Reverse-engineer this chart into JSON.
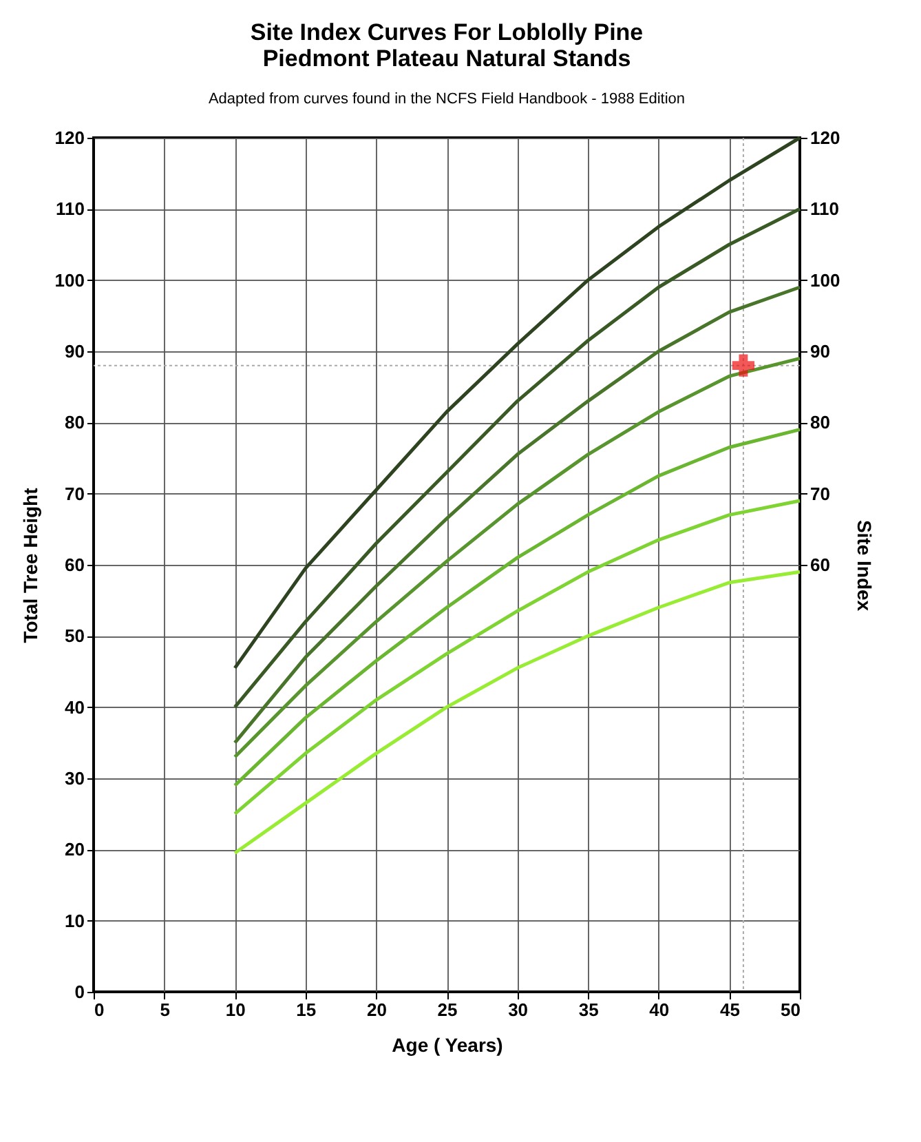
{
  "chart_data": {
    "type": "line",
    "title": "Site Index Curves For Loblolly Pine\nPiedmont Plateau Natural Stands",
    "subtitle": "Adapted from curves found in the NCFS Field Handbook - 1988 Edition",
    "xlabel": "Age ( Years)",
    "ylabel": "Total Tree Height",
    "y2label": "Site Index",
    "x": [
      10,
      15,
      20,
      25,
      30,
      35,
      40,
      45,
      50
    ],
    "series": [
      {
        "color": "#2e4420",
        "values": [
          45.5,
          59.5,
          70.5,
          81.5,
          91,
          100,
          107.5,
          114,
          120
        ]
      },
      {
        "color": "#3a5a25",
        "values": [
          40,
          52,
          63,
          73,
          83,
          91.5,
          99,
          105,
          110
        ]
      },
      {
        "color": "#48752a",
        "values": [
          35,
          47,
          57,
          66.5,
          75.5,
          83,
          90,
          95.5,
          99
        ]
      },
      {
        "color": "#58952e",
        "values": [
          33,
          43,
          52,
          60.5,
          68.5,
          75.5,
          81.5,
          86.5,
          89
        ]
      },
      {
        "color": "#6ab631",
        "values": [
          29,
          38.5,
          46.5,
          54,
          61,
          67,
          72.5,
          76.5,
          79
        ]
      },
      {
        "color": "#7fd333",
        "values": [
          25,
          33.5,
          41,
          47.5,
          53.5,
          59,
          63.5,
          67,
          69
        ]
      },
      {
        "color": "#98ec34",
        "values": [
          19.5,
          26.5,
          33.5,
          40,
          45.5,
          50,
          54,
          57.5,
          59
        ]
      },
      {
        "type": "scatter",
        "axis": "y2",
        "marker": "cross",
        "color": "#ee1111",
        "x": [
          46
        ],
        "values": [
          88
        ]
      }
    ],
    "xlim": [
      0,
      50
    ],
    "xticks": [
      0,
      5,
      10,
      15,
      20,
      25,
      30,
      35,
      40,
      45,
      50
    ],
    "ylim": [
      0,
      120
    ],
    "yticks": [
      0,
      10,
      20,
      30,
      40,
      50,
      60,
      70,
      80,
      90,
      100,
      110,
      120
    ],
    "y2lim": [
      0,
      120
    ],
    "y2ticks": [
      60,
      70,
      80,
      90,
      100,
      110,
      120
    ],
    "ref_lines": [
      {
        "axis": "x",
        "value": 46,
        "color": "#aaaaaa",
        "line_style": "dotted"
      },
      {
        "axis": "y",
        "value": 88,
        "color": "#aaaaaa",
        "line_style": "dotted"
      }
    ],
    "grid": true,
    "marker": "none",
    "line_style": "solid"
  }
}
